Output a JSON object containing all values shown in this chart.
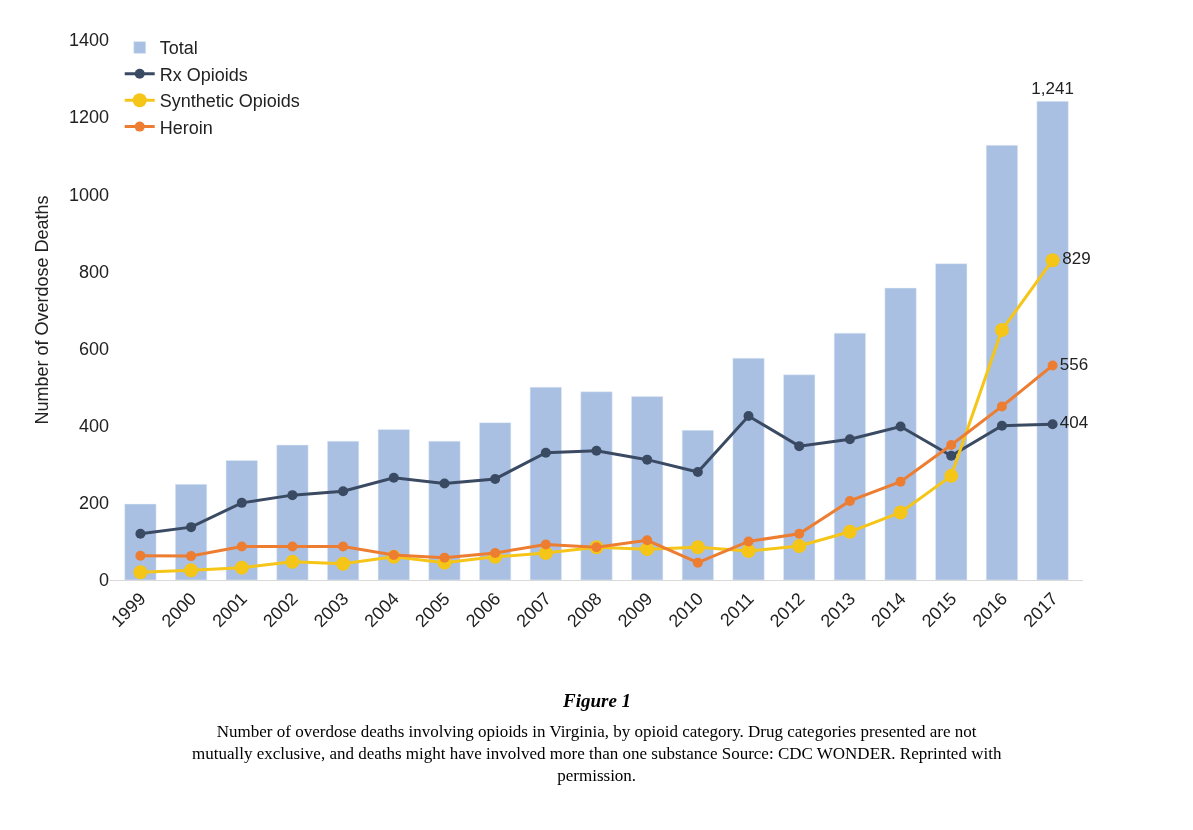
{
  "chart_data": {
    "type": "bar",
    "title": "Figure 1",
    "annotations": [
      "Number of overdose deaths involving opioids in Virginia, by opioid category. Drug categories presented are not mutually exclusive, and deaths might have involved more than one substance Source: CDC WONDER. Reprinted with permission."
    ],
    "ylabel": "Number of Overdose Deaths",
    "categories": [
      "1999",
      "2000",
      "2001",
      "2002",
      "2003",
      "2004",
      "2005",
      "2006",
      "2007",
      "2008",
      "2009",
      "2010",
      "2011",
      "2012",
      "2013",
      "2014",
      "2015",
      "2016",
      "2017"
    ],
    "series": [
      {
        "name": "Total",
        "color": "#a9c0e2",
        "values": [
          197,
          248,
          310,
          350,
          360,
          390,
          360,
          408,
          500,
          488,
          476,
          388,
          575,
          532,
          640,
          757,
          820,
          1127,
          1241
        ],
        "value_labels": [
          null,
          null,
          null,
          null,
          null,
          null,
          null,
          null,
          null,
          null,
          null,
          null,
          null,
          null,
          null,
          null,
          null,
          null,
          "1,241"
        ]
      },
      {
        "name": "Rx Opioids",
        "type": "line",
        "color": "#3b4a63",
        "values": [
          120,
          137,
          200,
          220,
          230,
          265,
          250,
          262,
          330,
          335,
          312,
          280,
          425,
          347,
          365,
          398,
          322,
          400,
          404
        ],
        "value_labels": [
          null,
          null,
          null,
          null,
          null,
          null,
          null,
          null,
          null,
          null,
          null,
          null,
          null,
          null,
          null,
          null,
          null,
          null,
          "404"
        ]
      },
      {
        "name": "Synthetic Opioids",
        "type": "line",
        "color": "#f5c518",
        "values": [
          20,
          25,
          32,
          47,
          42,
          60,
          45,
          60,
          70,
          85,
          80,
          85,
          75,
          88,
          125,
          175,
          270,
          648,
          829
        ],
        "value_labels": [
          null,
          null,
          null,
          null,
          null,
          null,
          null,
          null,
          null,
          null,
          null,
          null,
          null,
          null,
          null,
          null,
          null,
          null,
          "829"
        ]
      },
      {
        "name": "Heroin",
        "type": "line",
        "color": "#ed7d31",
        "values": [
          63,
          62,
          87,
          87,
          87,
          65,
          58,
          70,
          92,
          85,
          103,
          45,
          100,
          120,
          205,
          255,
          350,
          450,
          556
        ],
        "value_labels": [
          null,
          null,
          null,
          null,
          null,
          null,
          null,
          null,
          null,
          null,
          null,
          null,
          null,
          null,
          null,
          null,
          null,
          null,
          "556"
        ]
      }
    ],
    "ylim": [
      0,
      1400
    ],
    "yticks": [
      0,
      200,
      400,
      600,
      800,
      1000,
      1200,
      1400
    ],
    "legend": "top left",
    "marker": "circle"
  }
}
